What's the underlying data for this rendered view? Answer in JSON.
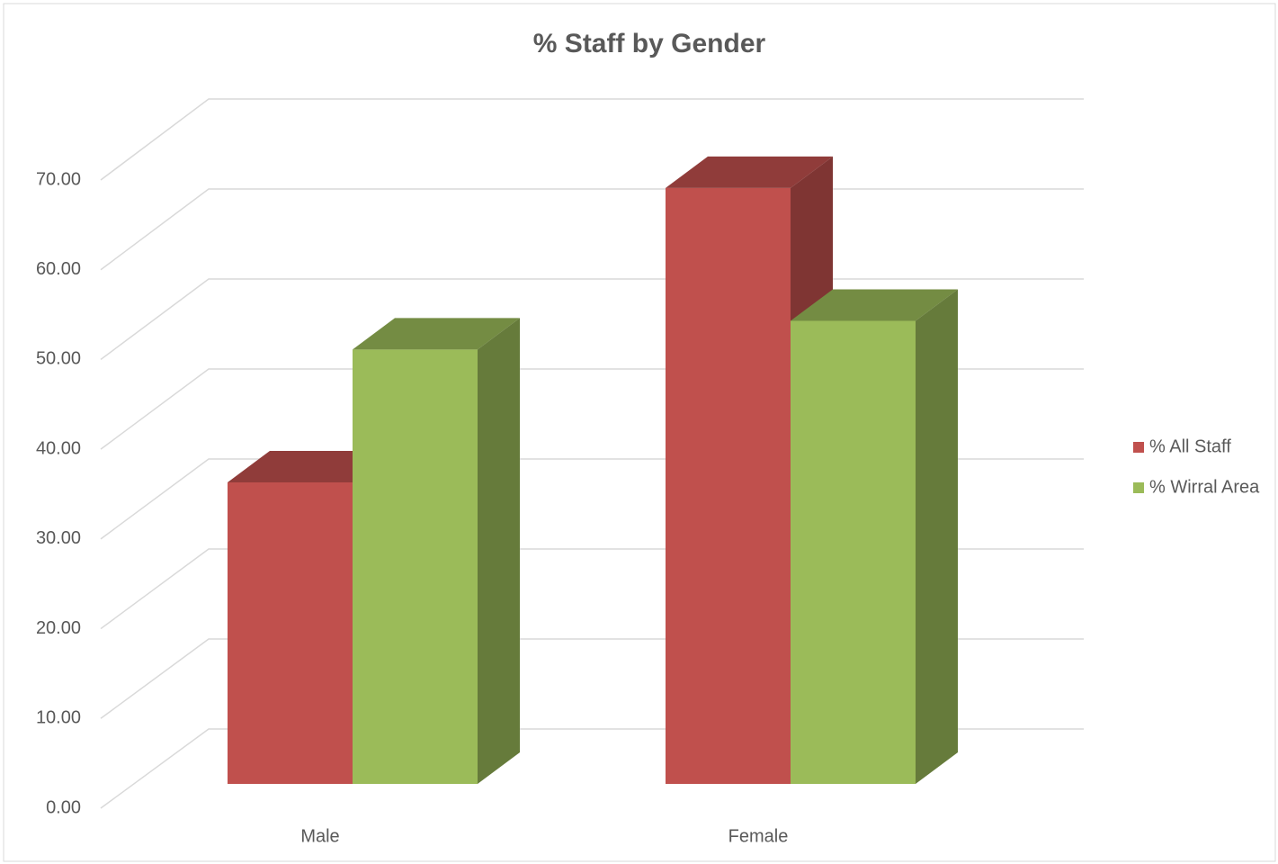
{
  "chart_data": {
    "type": "bar3d",
    "title": "% Staff by Gender",
    "categories": [
      "Male",
      "Female"
    ],
    "series": [
      {
        "name": "% All Staff",
        "color": "#c0504d",
        "values": [
          33.6,
          66.4
        ]
      },
      {
        "name": "% Wirral Area",
        "color": "#9bbb59",
        "values": [
          48.4,
          51.6
        ]
      }
    ],
    "ylim": [
      0,
      70
    ],
    "yticks": [
      {
        "value": 0,
        "label": "0.00"
      },
      {
        "value": 10,
        "label": "10.00"
      },
      {
        "value": 20,
        "label": "20.00"
      },
      {
        "value": 30,
        "label": "30.00"
      },
      {
        "value": 40,
        "label": "40.00"
      },
      {
        "value": 50,
        "label": "50.00"
      },
      {
        "value": 60,
        "label": "60.00"
      },
      {
        "value": 70,
        "label": "70.00"
      }
    ],
    "grid": true,
    "legend": "right"
  }
}
